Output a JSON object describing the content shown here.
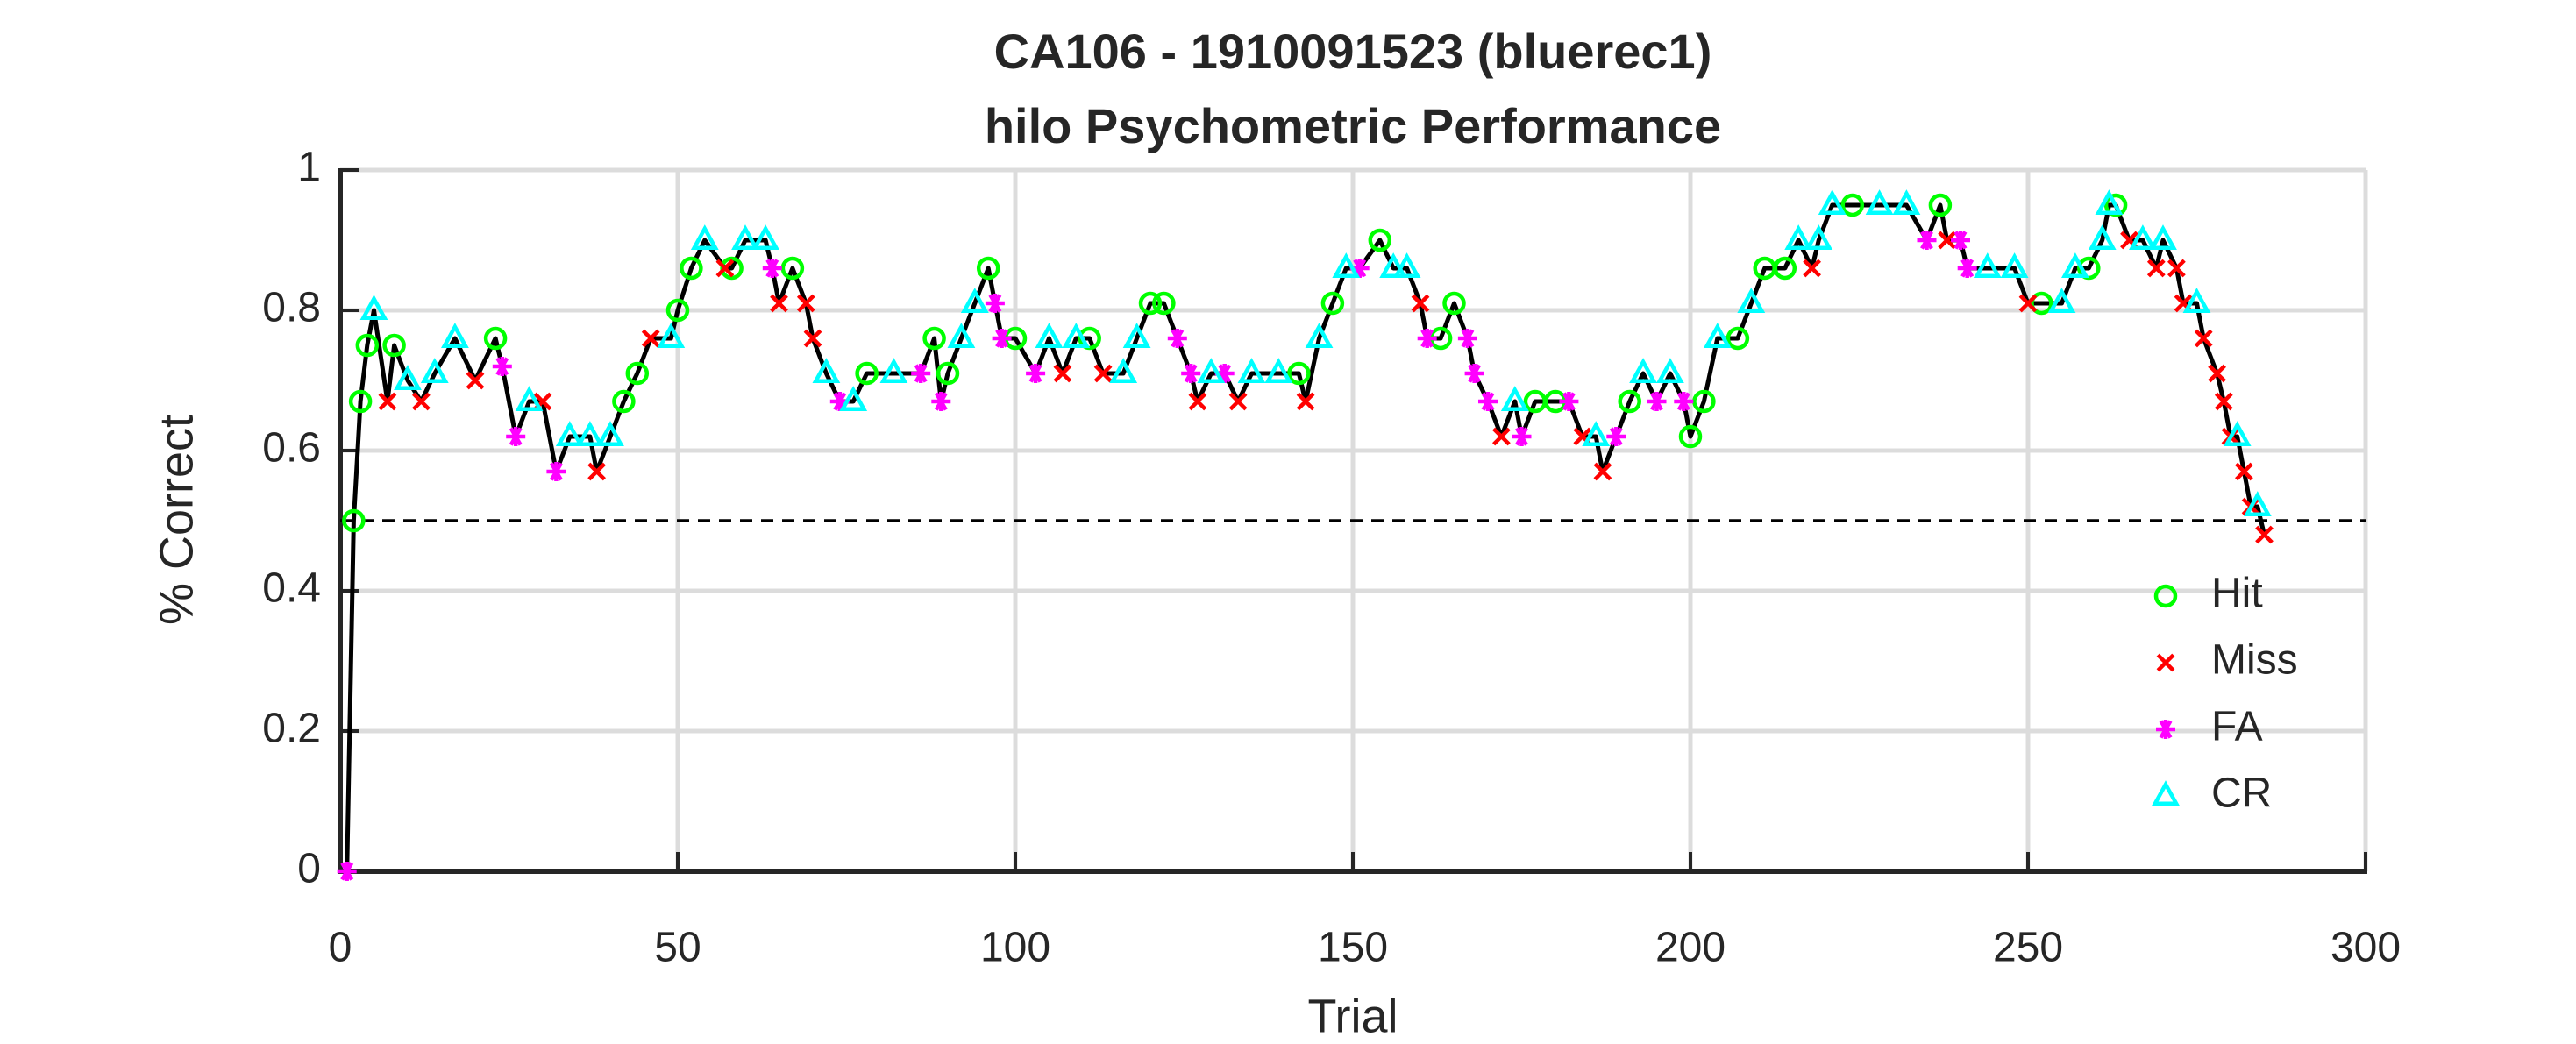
{
  "chart_data": {
    "type": "line",
    "title": "CA106 - 1910091523 (bluerec1)",
    "subtitle": "hilo Psychometric Performance",
    "x_label": "Trial",
    "y_label": "% Correct",
    "xlim": [
      0,
      300
    ],
    "xticks": [
      0,
      50,
      100,
      150,
      200,
      250,
      300
    ],
    "ylim": [
      0,
      1
    ],
    "yticks": [
      0,
      0.2,
      0.4,
      0.6,
      0.8,
      1
    ],
    "grid": true,
    "legend": "lower right",
    "hline": {
      "value": 0.5,
      "style": "dashed",
      "color": "#000000"
    },
    "series": [
      {
        "color": "#000000",
        "marker": "none",
        "x": [
          1,
          2,
          3,
          4,
          5,
          7,
          8,
          10,
          12,
          14,
          17,
          20,
          23,
          24,
          26,
          28,
          30,
          32,
          34,
          37,
          38,
          40,
          42,
          44,
          46,
          49,
          50,
          52,
          54,
          57,
          58,
          60,
          63,
          64,
          65,
          67,
          69,
          70,
          72,
          74,
          76,
          78,
          82,
          86,
          88,
          89,
          90,
          92,
          94,
          96,
          97,
          98,
          100,
          103,
          105,
          107,
          109,
          111,
          113,
          116,
          118,
          120,
          122,
          124,
          126,
          127,
          129,
          131,
          133,
          135,
          139,
          142,
          143,
          145,
          147,
          149,
          151,
          154,
          156,
          158,
          160,
          161,
          163,
          165,
          167,
          168,
          170,
          172,
          174,
          175,
          177,
          180,
          182,
          184,
          186,
          187,
          189,
          191,
          193,
          195,
          197,
          199,
          200,
          202,
          204,
          207,
          209,
          211,
          214,
          216,
          218,
          219,
          221,
          224,
          228,
          232,
          235,
          237,
          238,
          240,
          241,
          244,
          248,
          250,
          252,
          255,
          257,
          259,
          261,
          262,
          263,
          265,
          267,
          269,
          270,
          272,
          273,
          275,
          276,
          278,
          279,
          280,
          281,
          282,
          283,
          284,
          285
        ],
        "values": [
          0,
          0.5,
          0.67,
          0.75,
          0.8,
          0.67,
          0.75,
          0.7,
          0.67,
          0.71,
          0.76,
          0.7,
          0.76,
          0.72,
          0.62,
          0.67,
          0.67,
          0.57,
          0.62,
          0.62,
          0.57,
          0.62,
          0.67,
          0.71,
          0.76,
          0.76,
          0.8,
          0.86,
          0.9,
          0.86,
          0.86,
          0.9,
          0.9,
          0.86,
          0.81,
          0.86,
          0.81,
          0.76,
          0.71,
          0.67,
          0.67,
          0.71,
          0.71,
          0.71,
          0.76,
          0.67,
          0.71,
          0.76,
          0.81,
          0.86,
          0.81,
          0.76,
          0.76,
          0.71,
          0.76,
          0.71,
          0.76,
          0.76,
          0.71,
          0.71,
          0.76,
          0.81,
          0.81,
          0.76,
          0.71,
          0.67,
          0.71,
          0.71,
          0.67,
          0.71,
          0.71,
          0.71,
          0.67,
          0.76,
          0.81,
          0.86,
          0.86,
          0.9,
          0.86,
          0.86,
          0.81,
          0.76,
          0.76,
          0.81,
          0.76,
          0.71,
          0.67,
          0.62,
          0.67,
          0.62,
          0.67,
          0.67,
          0.67,
          0.62,
          0.62,
          0.57,
          0.62,
          0.67,
          0.71,
          0.67,
          0.71,
          0.67,
          0.62,
          0.67,
          0.76,
          0.76,
          0.81,
          0.86,
          0.86,
          0.9,
          0.86,
          0.9,
          0.95,
          0.95,
          0.95,
          0.95,
          0.9,
          0.95,
          0.9,
          0.9,
          0.86,
          0.86,
          0.86,
          0.81,
          0.81,
          0.81,
          0.86,
          0.86,
          0.9,
          0.95,
          0.95,
          0.9,
          0.9,
          0.86,
          0.9,
          0.86,
          0.81,
          0.81,
          0.76,
          0.71,
          0.67,
          0.62,
          0.62,
          0.57,
          0.52,
          0.52,
          0.48
        ]
      },
      {
        "name": "Hit",
        "color": "#00ff00",
        "marker": "circle",
        "x": [
          2,
          3,
          4,
          8,
          23,
          42,
          44,
          50,
          52,
          58,
          67,
          78,
          88,
          90,
          96,
          100,
          111,
          120,
          122,
          142,
          147,
          154,
          163,
          165,
          177,
          180,
          191,
          200,
          202,
          207,
          211,
          214,
          224,
          237,
          252,
          259,
          263
        ],
        "values": [
          0.5,
          0.67,
          0.75,
          0.75,
          0.76,
          0.67,
          0.71,
          0.8,
          0.86,
          0.86,
          0.86,
          0.71,
          0.76,
          0.71,
          0.86,
          0.76,
          0.76,
          0.81,
          0.81,
          0.71,
          0.81,
          0.9,
          0.76,
          0.81,
          0.67,
          0.67,
          0.67,
          0.62,
          0.67,
          0.76,
          0.86,
          0.86,
          0.95,
          0.95,
          0.81,
          0.86,
          0.95
        ]
      },
      {
        "name": "Miss",
        "color": "#ff0000",
        "marker": "cross",
        "x": [
          7,
          12,
          20,
          30,
          38,
          46,
          57,
          65,
          69,
          70,
          107,
          113,
          127,
          133,
          143,
          160,
          172,
          184,
          187,
          218,
          238,
          250,
          265,
          269,
          272,
          273,
          276,
          278,
          279,
          280,
          282,
          283,
          285
        ],
        "values": [
          0.67,
          0.67,
          0.7,
          0.67,
          0.57,
          0.76,
          0.86,
          0.81,
          0.81,
          0.76,
          0.71,
          0.71,
          0.67,
          0.67,
          0.67,
          0.81,
          0.62,
          0.62,
          0.57,
          0.86,
          0.9,
          0.81,
          0.9,
          0.86,
          0.86,
          0.81,
          0.76,
          0.71,
          0.67,
          0.62,
          0.57,
          0.52,
          0.48
        ]
      },
      {
        "name": "FA",
        "color": "#ff00ff",
        "marker": "asterisk",
        "x": [
          1,
          24,
          26,
          32,
          64,
          74,
          86,
          89,
          97,
          98,
          103,
          124,
          126,
          131,
          151,
          161,
          167,
          168,
          170,
          175,
          182,
          189,
          195,
          199,
          235,
          240,
          241
        ],
        "values": [
          0,
          0.72,
          0.62,
          0.57,
          0.86,
          0.67,
          0.71,
          0.67,
          0.81,
          0.76,
          0.71,
          0.76,
          0.71,
          0.71,
          0.86,
          0.76,
          0.76,
          0.71,
          0.67,
          0.62,
          0.67,
          0.62,
          0.67,
          0.67,
          0.9,
          0.9,
          0.86
        ]
      },
      {
        "name": "CR",
        "color": "#00ffff",
        "marker": "triangle",
        "x": [
          5,
          10,
          14,
          17,
          28,
          34,
          37,
          40,
          49,
          54,
          60,
          63,
          72,
          76,
          82,
          92,
          94,
          105,
          109,
          116,
          118,
          129,
          135,
          139,
          145,
          149,
          156,
          158,
          174,
          186,
          193,
          197,
          204,
          209,
          216,
          219,
          221,
          228,
          232,
          244,
          248,
          255,
          257,
          261,
          262,
          267,
          270,
          275,
          281,
          284
        ],
        "values": [
          0.8,
          0.7,
          0.71,
          0.76,
          0.67,
          0.62,
          0.62,
          0.62,
          0.76,
          0.9,
          0.9,
          0.9,
          0.71,
          0.67,
          0.71,
          0.76,
          0.81,
          0.76,
          0.76,
          0.71,
          0.76,
          0.71,
          0.71,
          0.71,
          0.76,
          0.86,
          0.86,
          0.86,
          0.67,
          0.62,
          0.71,
          0.71,
          0.76,
          0.81,
          0.9,
          0.9,
          0.95,
          0.95,
          0.95,
          0.86,
          0.86,
          0.81,
          0.86,
          0.9,
          0.95,
          0.9,
          0.9,
          0.81,
          0.62,
          0.52
        ]
      }
    ]
  }
}
